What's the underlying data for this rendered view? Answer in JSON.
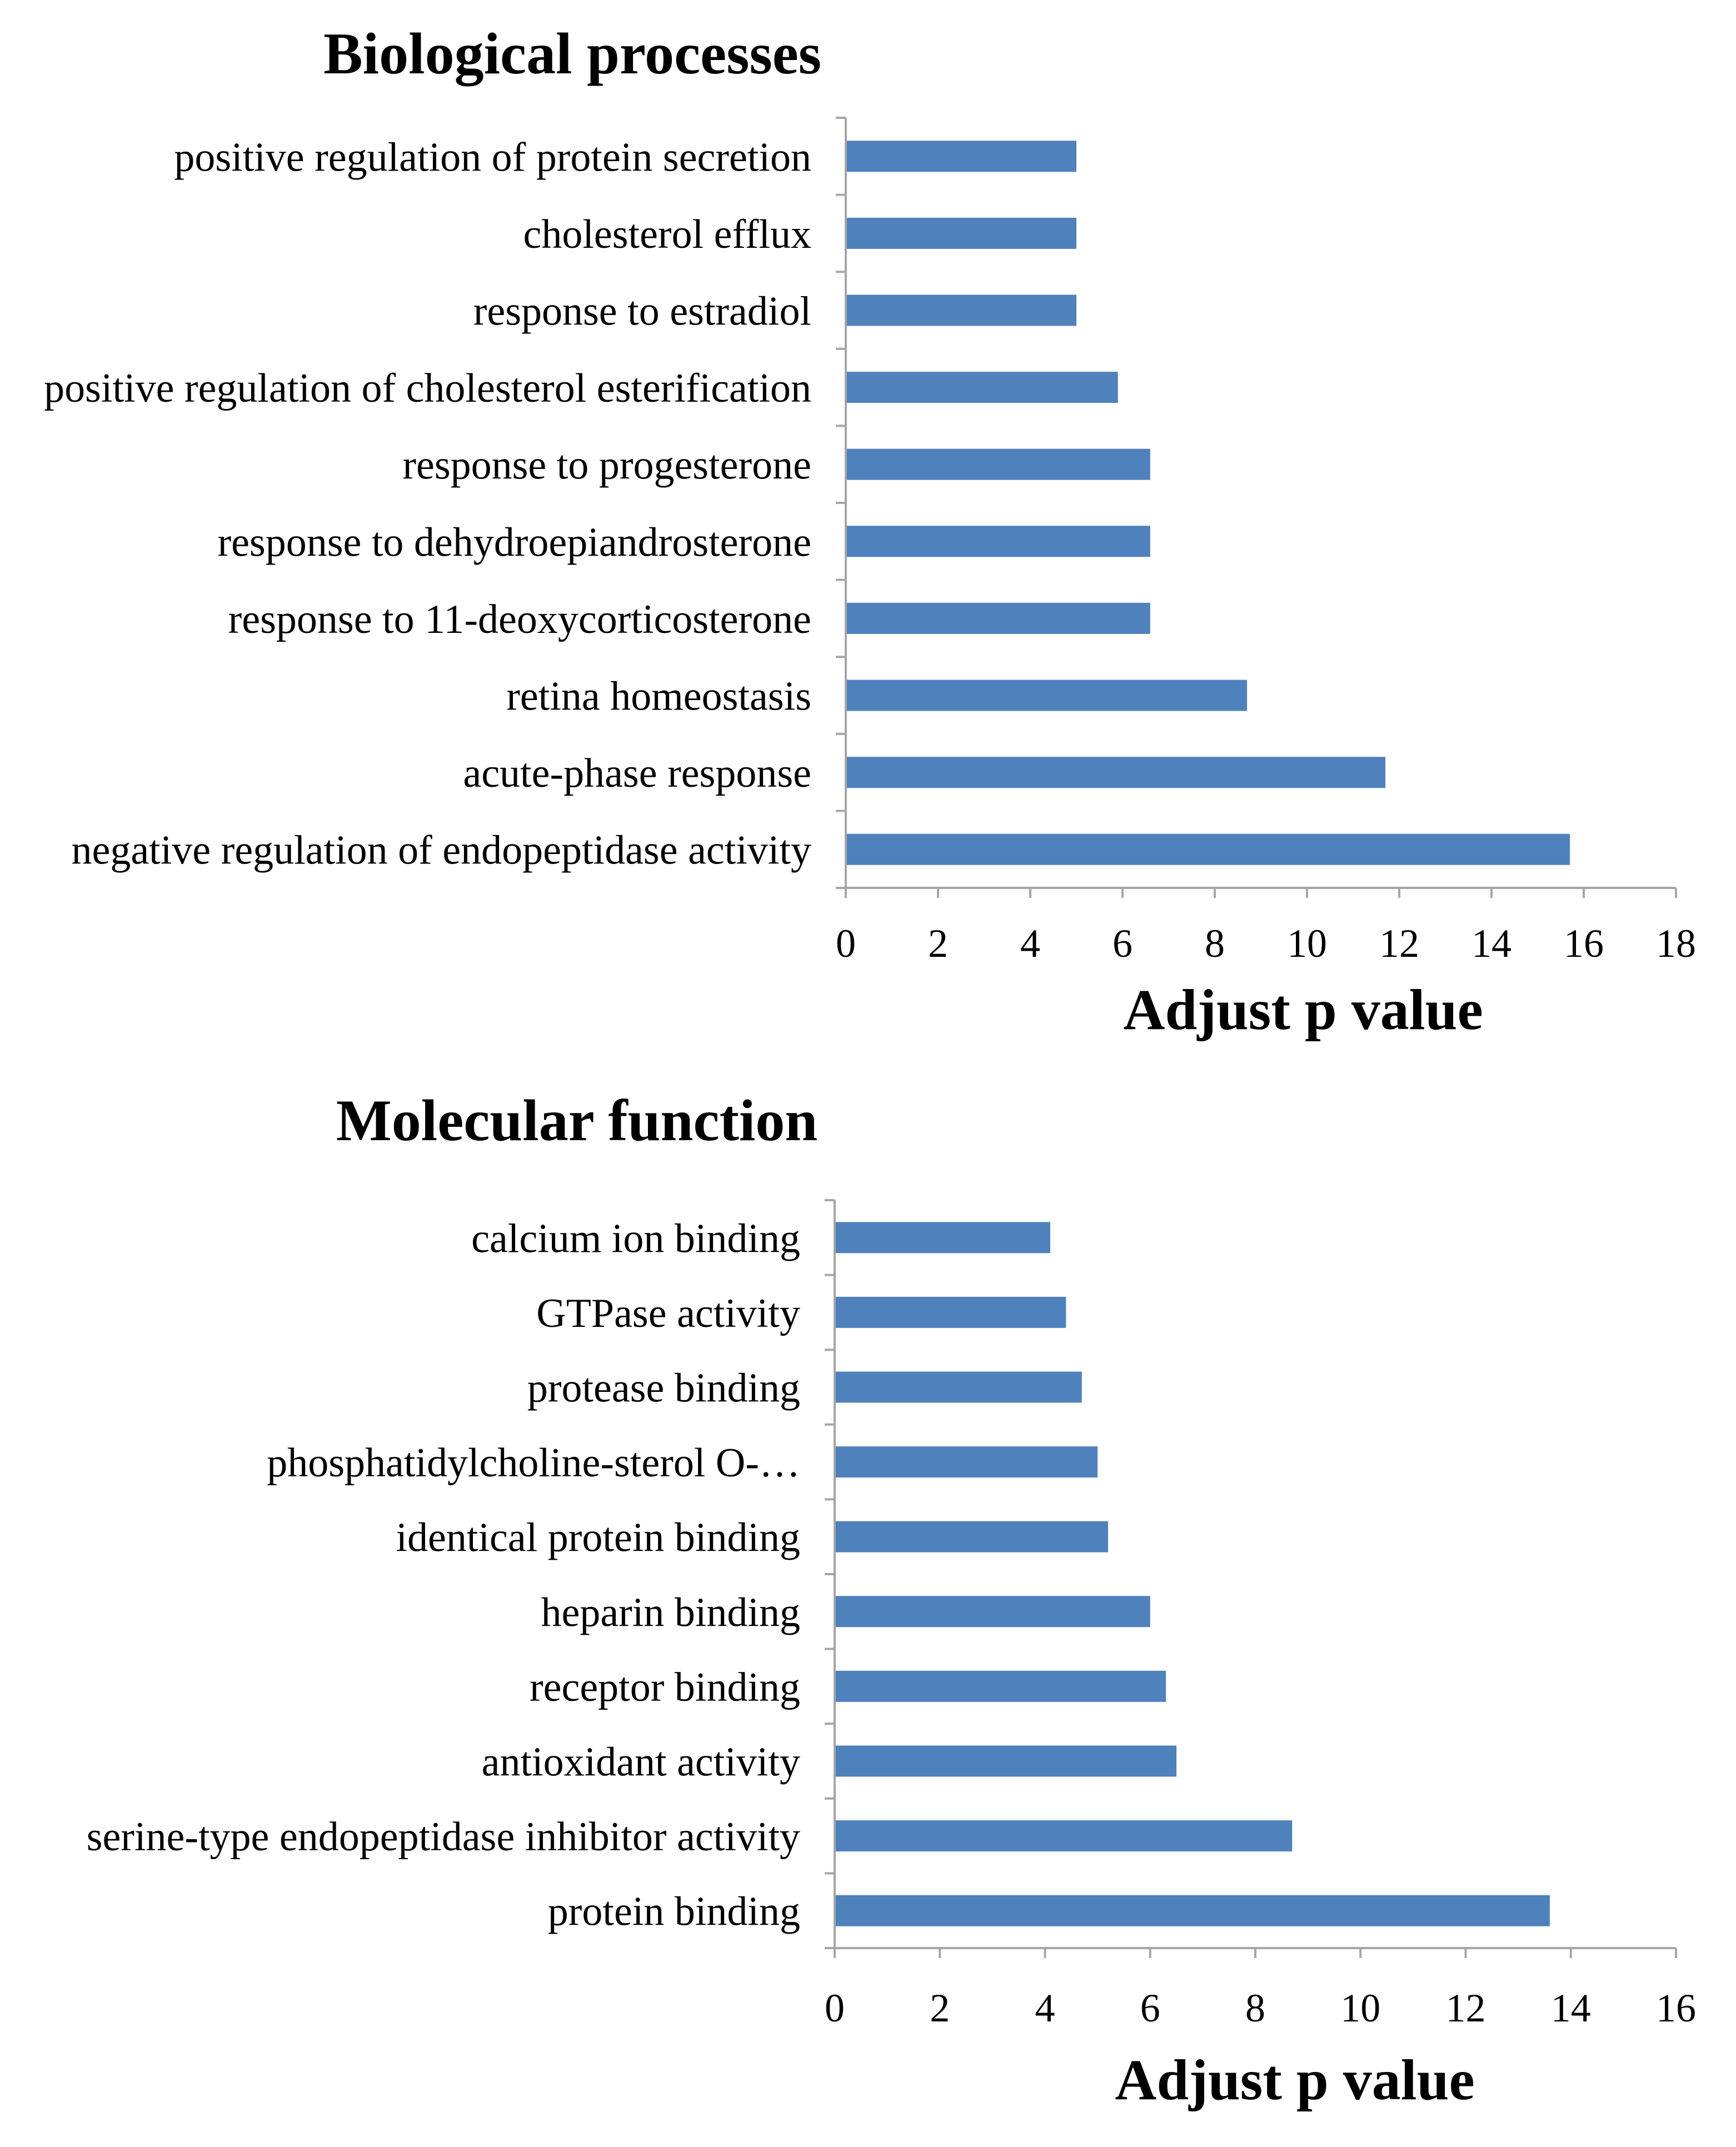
{
  "chart_data": [
    {
      "type": "bar",
      "orientation": "horizontal",
      "title": "Biological processes",
      "categories": [
        "positive regulation of protein secretion",
        "cholesterol efflux",
        "response to estradiol",
        "positive regulation of cholesterol esterification",
        "response to progesterone",
        "response to dehydroepiandrosterone",
        "response to 11-deoxycorticosterone",
        "retina homeostasis",
        "acute-phase response",
        "negative regulation of endopeptidase activity"
      ],
      "values": [
        5.0,
        5.0,
        5.0,
        5.9,
        6.6,
        6.6,
        6.6,
        8.7,
        11.7,
        15.7
      ],
      "xlabel": "Adjust p value",
      "ylabel": "",
      "xlim": [
        0,
        18
      ],
      "xticks": [
        "0",
        "2",
        "4",
        "6",
        "8",
        "10",
        "12",
        "14",
        "16",
        "18"
      ],
      "grid": false,
      "color": "#4f81bd"
    },
    {
      "type": "bar",
      "orientation": "horizontal",
      "title": "Molecular function",
      "categories": [
        "calcium ion binding",
        "GTPase activity",
        "protease binding",
        "phosphatidylcholine-sterol O-…",
        "identical protein binding",
        "heparin binding",
        "receptor binding",
        "antioxidant activity",
        "serine-type endopeptidase inhibitor activity",
        "protein binding"
      ],
      "values": [
        4.1,
        4.4,
        4.7,
        5.0,
        5.2,
        6.0,
        6.3,
        6.5,
        8.7,
        13.6
      ],
      "xlabel": "Adjust p value",
      "ylabel": "",
      "xlim": [
        0,
        16
      ],
      "xticks": [
        "0",
        "2",
        "4",
        "6",
        "8",
        "10",
        "12",
        "14",
        "16"
      ],
      "grid": false,
      "color": "#4f81bd"
    }
  ]
}
